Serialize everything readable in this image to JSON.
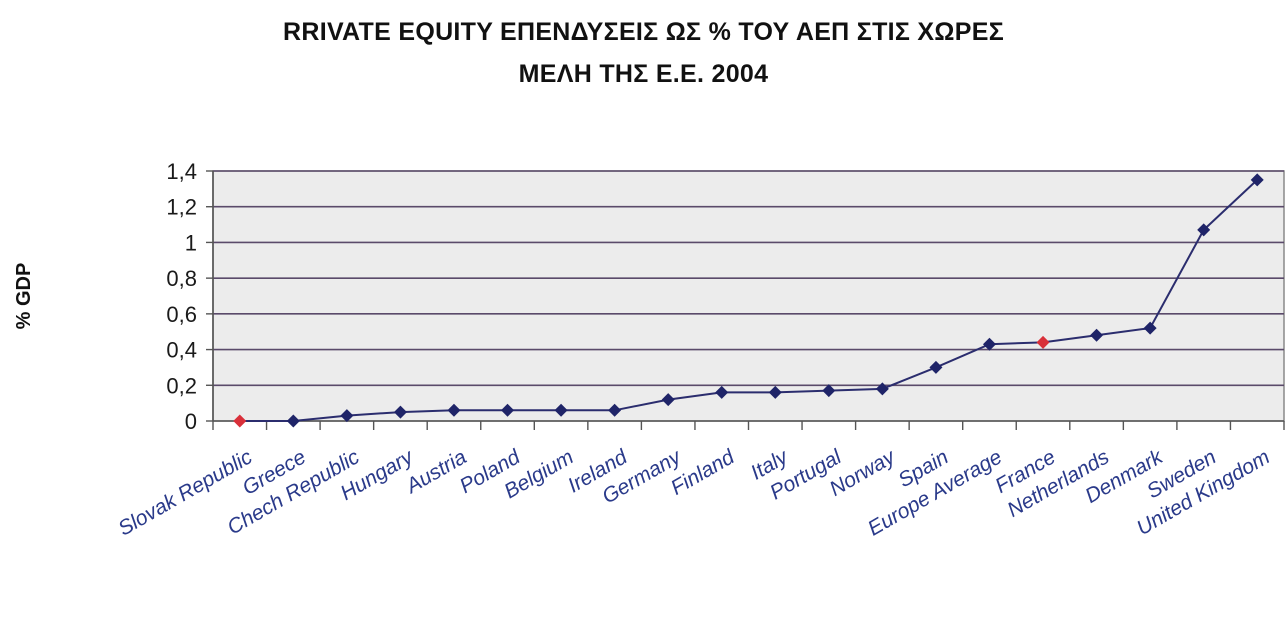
{
  "chart_data": {
    "type": "line",
    "title_line1": "RRIVATE EQUITY ΕΠΕΝΔΥΣΕΙΣ ΩΣ %  ΤΟΥ ΑΕΠ ΣΤΙΣ ΧΩΡΕΣ",
    "title_line2": "ΜΕΛΗ ΤΗΣ Ε.Ε. 2004",
    "ylabel": "% GDP",
    "xlabel": "",
    "ylim": [
      0,
      1.4
    ],
    "y_ticks": [
      "0",
      "0,2",
      "0,4",
      "0,6",
      "0,8",
      "1",
      "1,2",
      "1,4"
    ],
    "grid": true,
    "categories": [
      "Slovak Republic",
      "Greece",
      "Chech Republic",
      "Hungary",
      "Austria",
      "Poland",
      "Belgium",
      "Ireland",
      "Germany",
      "Finland",
      "Italy",
      "Portugal",
      "Norway",
      "Spain",
      "Europe Average",
      "France",
      "Netherlands",
      "Denmark",
      "Sweden",
      "United Kingdom"
    ],
    "values": [
      0.0,
      0.0,
      0.03,
      0.05,
      0.06,
      0.06,
      0.06,
      0.06,
      0.12,
      0.16,
      0.16,
      0.17,
      0.18,
      0.3,
      0.43,
      0.44,
      0.48,
      0.52,
      1.07,
      1.35
    ],
    "highlighted": [
      "Slovak Republic",
      "France"
    ],
    "colors": {
      "line": "#2b2d6e",
      "marker": "#1f2468",
      "highlight_marker": "#d9303a",
      "plot_bg": "#ececec",
      "grid": "#5a4a6a",
      "category_text": "#2a3a8a"
    }
  }
}
